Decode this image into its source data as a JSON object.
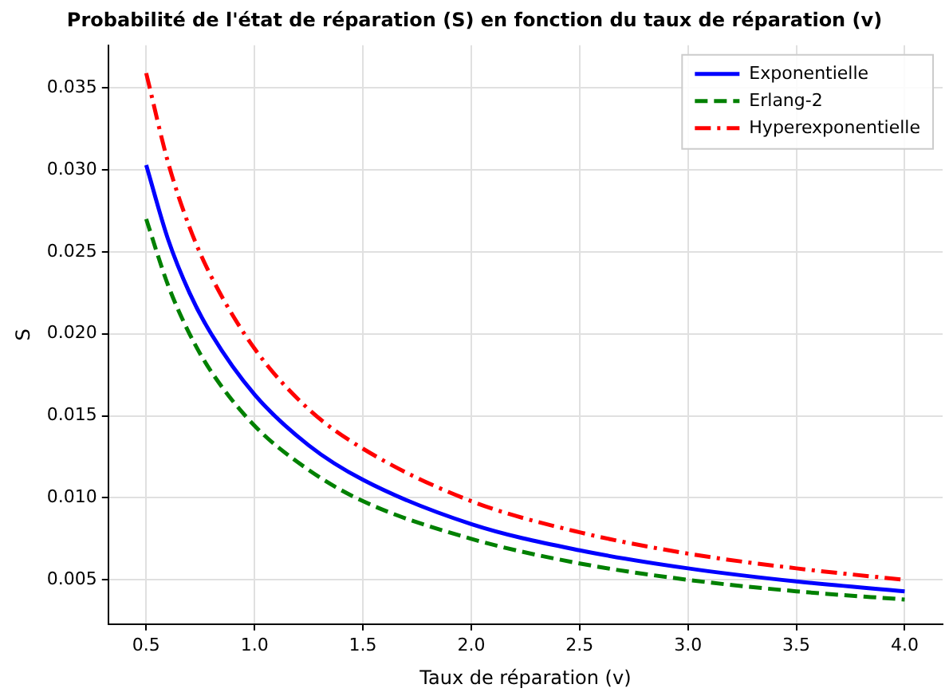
{
  "chart_data": {
    "type": "line",
    "title": "Probabilité de l'état de réparation (S) en fonction du taux de réparation (v)",
    "xlabel": "Taux de réparation (v)",
    "ylabel": "S",
    "x": [
      0.5,
      0.6,
      0.7,
      0.8,
      1.0,
      1.25,
      1.5,
      2.0,
      2.5,
      3.0,
      3.5,
      4.0
    ],
    "series": [
      {
        "name": "Exponentielle",
        "color": "#0000ff",
        "line_style": "solid",
        "values": [
          0.0303,
          0.0258,
          0.0225,
          0.02,
          0.0163,
          0.0132,
          0.0111,
          0.0084,
          0.0068,
          0.0057,
          0.0049,
          0.0043
        ]
      },
      {
        "name": "Erlang-2",
        "color": "#008000",
        "line_style": "dashed",
        "values": [
          0.027,
          0.023,
          0.02,
          0.0177,
          0.0144,
          0.0117,
          0.0098,
          0.0075,
          0.006,
          0.005,
          0.0043,
          0.0038
        ]
      },
      {
        "name": "Hyperexponentielle",
        "color": "#ff0000",
        "line_style": "dashdot",
        "values": [
          0.0359,
          0.0305,
          0.0265,
          0.0235,
          0.0191,
          0.0154,
          0.013,
          0.0098,
          0.0079,
          0.0066,
          0.0057,
          0.005
        ]
      }
    ],
    "xlim": [
      0.325,
      4.175
    ],
    "ylim": [
      0.0023,
      0.0376
    ],
    "xticks": [
      0.5,
      {
        "value": 1,
        "label": "1.0"
      },
      1.5,
      {
        "value": 2,
        "label": "2.0"
      },
      2.5,
      {
        "value": 3,
        "label": "3.0"
      },
      3.5,
      {
        "value": 4,
        "label": "4.0"
      }
    ],
    "yticks": [
      0.005,
      {
        "value": 0.01,
        "label": "0.010"
      },
      0.015,
      {
        "value": 0.02,
        "label": "0.020"
      },
      0.025,
      {
        "value": 0.03,
        "label": "0.030"
      },
      0.035
    ],
    "grid": true,
    "legend": "top right",
    "marker": "none"
  }
}
